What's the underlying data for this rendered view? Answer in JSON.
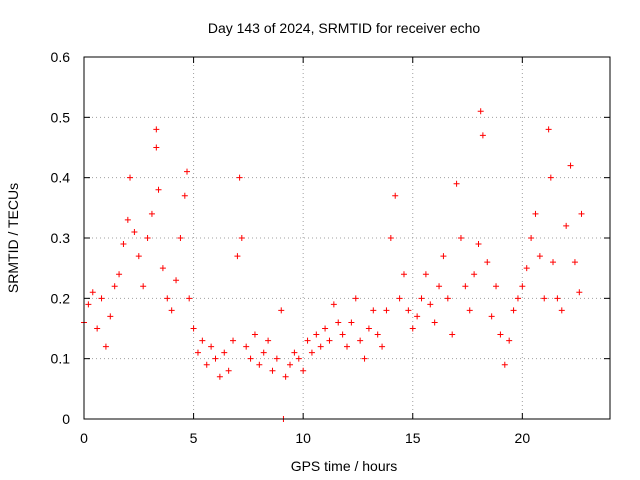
{
  "chart_data": {
    "type": "scatter",
    "title": "Day 143 of 2024, SRMTID for receiver echo",
    "xlabel": "GPS time / hours",
    "ylabel": "SRMTID / TECUs",
    "xlim": [
      0,
      24
    ],
    "ylim": [
      0,
      0.6
    ],
    "xticks": [
      0,
      5,
      10,
      15,
      20
    ],
    "xtick_labels": [
      "0",
      "5",
      "10",
      "15",
      "20"
    ],
    "yticks": [
      0,
      0.1,
      0.2,
      0.3,
      0.4,
      0.5,
      0.6
    ],
    "ytick_labels": [
      "0",
      "0.1",
      "0.2",
      "0.3",
      "0.4",
      "0.5",
      "0.6"
    ],
    "grid": true,
    "marker": "+",
    "color": "#ff0000",
    "series": [
      {
        "name": "SRMTID",
        "points": [
          [
            0.0,
            0.16
          ],
          [
            0.2,
            0.19
          ],
          [
            0.4,
            0.21
          ],
          [
            0.6,
            0.15
          ],
          [
            0.8,
            0.2
          ],
          [
            1.0,
            0.12
          ],
          [
            1.2,
            0.17
          ],
          [
            1.4,
            0.22
          ],
          [
            1.6,
            0.24
          ],
          [
            1.8,
            0.29
          ],
          [
            2.0,
            0.33
          ],
          [
            2.1,
            0.4
          ],
          [
            2.3,
            0.31
          ],
          [
            2.5,
            0.27
          ],
          [
            2.7,
            0.22
          ],
          [
            2.9,
            0.3
          ],
          [
            3.1,
            0.34
          ],
          [
            3.3,
            0.48
          ],
          [
            3.3,
            0.45
          ],
          [
            3.4,
            0.38
          ],
          [
            3.6,
            0.25
          ],
          [
            3.8,
            0.2
          ],
          [
            4.0,
            0.18
          ],
          [
            4.2,
            0.23
          ],
          [
            4.4,
            0.3
          ],
          [
            4.6,
            0.37
          ],
          [
            4.7,
            0.41
          ],
          [
            4.8,
            0.2
          ],
          [
            5.0,
            0.15
          ],
          [
            5.2,
            0.11
          ],
          [
            5.4,
            0.13
          ],
          [
            5.6,
            0.09
          ],
          [
            5.8,
            0.12
          ],
          [
            6.0,
            0.1
          ],
          [
            6.2,
            0.07
          ],
          [
            6.4,
            0.11
          ],
          [
            6.6,
            0.08
          ],
          [
            6.8,
            0.13
          ],
          [
            7.0,
            0.27
          ],
          [
            7.1,
            0.4
          ],
          [
            7.2,
            0.3
          ],
          [
            7.4,
            0.12
          ],
          [
            7.6,
            0.1
          ],
          [
            7.8,
            0.14
          ],
          [
            8.0,
            0.09
          ],
          [
            8.2,
            0.11
          ],
          [
            8.4,
            0.13
          ],
          [
            8.6,
            0.08
          ],
          [
            8.8,
            0.1
          ],
          [
            9.0,
            0.18
          ],
          [
            9.1,
            0.0
          ],
          [
            9.2,
            0.07
          ],
          [
            9.4,
            0.09
          ],
          [
            9.6,
            0.11
          ],
          [
            9.8,
            0.1
          ],
          [
            10.0,
            0.08
          ],
          [
            10.2,
            0.13
          ],
          [
            10.4,
            0.11
          ],
          [
            10.6,
            0.14
          ],
          [
            10.8,
            0.12
          ],
          [
            11.0,
            0.15
          ],
          [
            11.2,
            0.13
          ],
          [
            11.4,
            0.19
          ],
          [
            11.6,
            0.16
          ],
          [
            11.8,
            0.14
          ],
          [
            12.0,
            0.12
          ],
          [
            12.2,
            0.16
          ],
          [
            12.4,
            0.2
          ],
          [
            12.6,
            0.13
          ],
          [
            12.8,
            0.1
          ],
          [
            13.0,
            0.15
          ],
          [
            13.2,
            0.18
          ],
          [
            13.4,
            0.14
          ],
          [
            13.6,
            0.12
          ],
          [
            13.8,
            0.18
          ],
          [
            14.0,
            0.3
          ],
          [
            14.2,
            0.37
          ],
          [
            14.4,
            0.2
          ],
          [
            14.6,
            0.24
          ],
          [
            14.8,
            0.18
          ],
          [
            15.0,
            0.15
          ],
          [
            15.2,
            0.17
          ],
          [
            15.4,
            0.2
          ],
          [
            15.6,
            0.24
          ],
          [
            15.8,
            0.19
          ],
          [
            16.0,
            0.16
          ],
          [
            16.2,
            0.22
          ],
          [
            16.4,
            0.27
          ],
          [
            16.6,
            0.2
          ],
          [
            16.8,
            0.14
          ],
          [
            17.0,
            0.39
          ],
          [
            17.2,
            0.3
          ],
          [
            17.4,
            0.22
          ],
          [
            17.6,
            0.18
          ],
          [
            17.8,
            0.24
          ],
          [
            18.0,
            0.29
          ],
          [
            18.1,
            0.51
          ],
          [
            18.2,
            0.47
          ],
          [
            18.4,
            0.26
          ],
          [
            18.6,
            0.17
          ],
          [
            18.8,
            0.22
          ],
          [
            19.0,
            0.14
          ],
          [
            19.2,
            0.09
          ],
          [
            19.4,
            0.13
          ],
          [
            19.6,
            0.18
          ],
          [
            19.8,
            0.2
          ],
          [
            20.0,
            0.22
          ],
          [
            20.2,
            0.25
          ],
          [
            20.4,
            0.3
          ],
          [
            20.6,
            0.34
          ],
          [
            20.8,
            0.27
          ],
          [
            21.0,
            0.2
          ],
          [
            21.2,
            0.48
          ],
          [
            21.3,
            0.4
          ],
          [
            21.4,
            0.26
          ],
          [
            21.6,
            0.2
          ],
          [
            21.8,
            0.18
          ],
          [
            22.0,
            0.32
          ],
          [
            22.2,
            0.42
          ],
          [
            22.4,
            0.26
          ],
          [
            22.6,
            0.21
          ],
          [
            22.7,
            0.34
          ]
        ]
      }
    ]
  }
}
